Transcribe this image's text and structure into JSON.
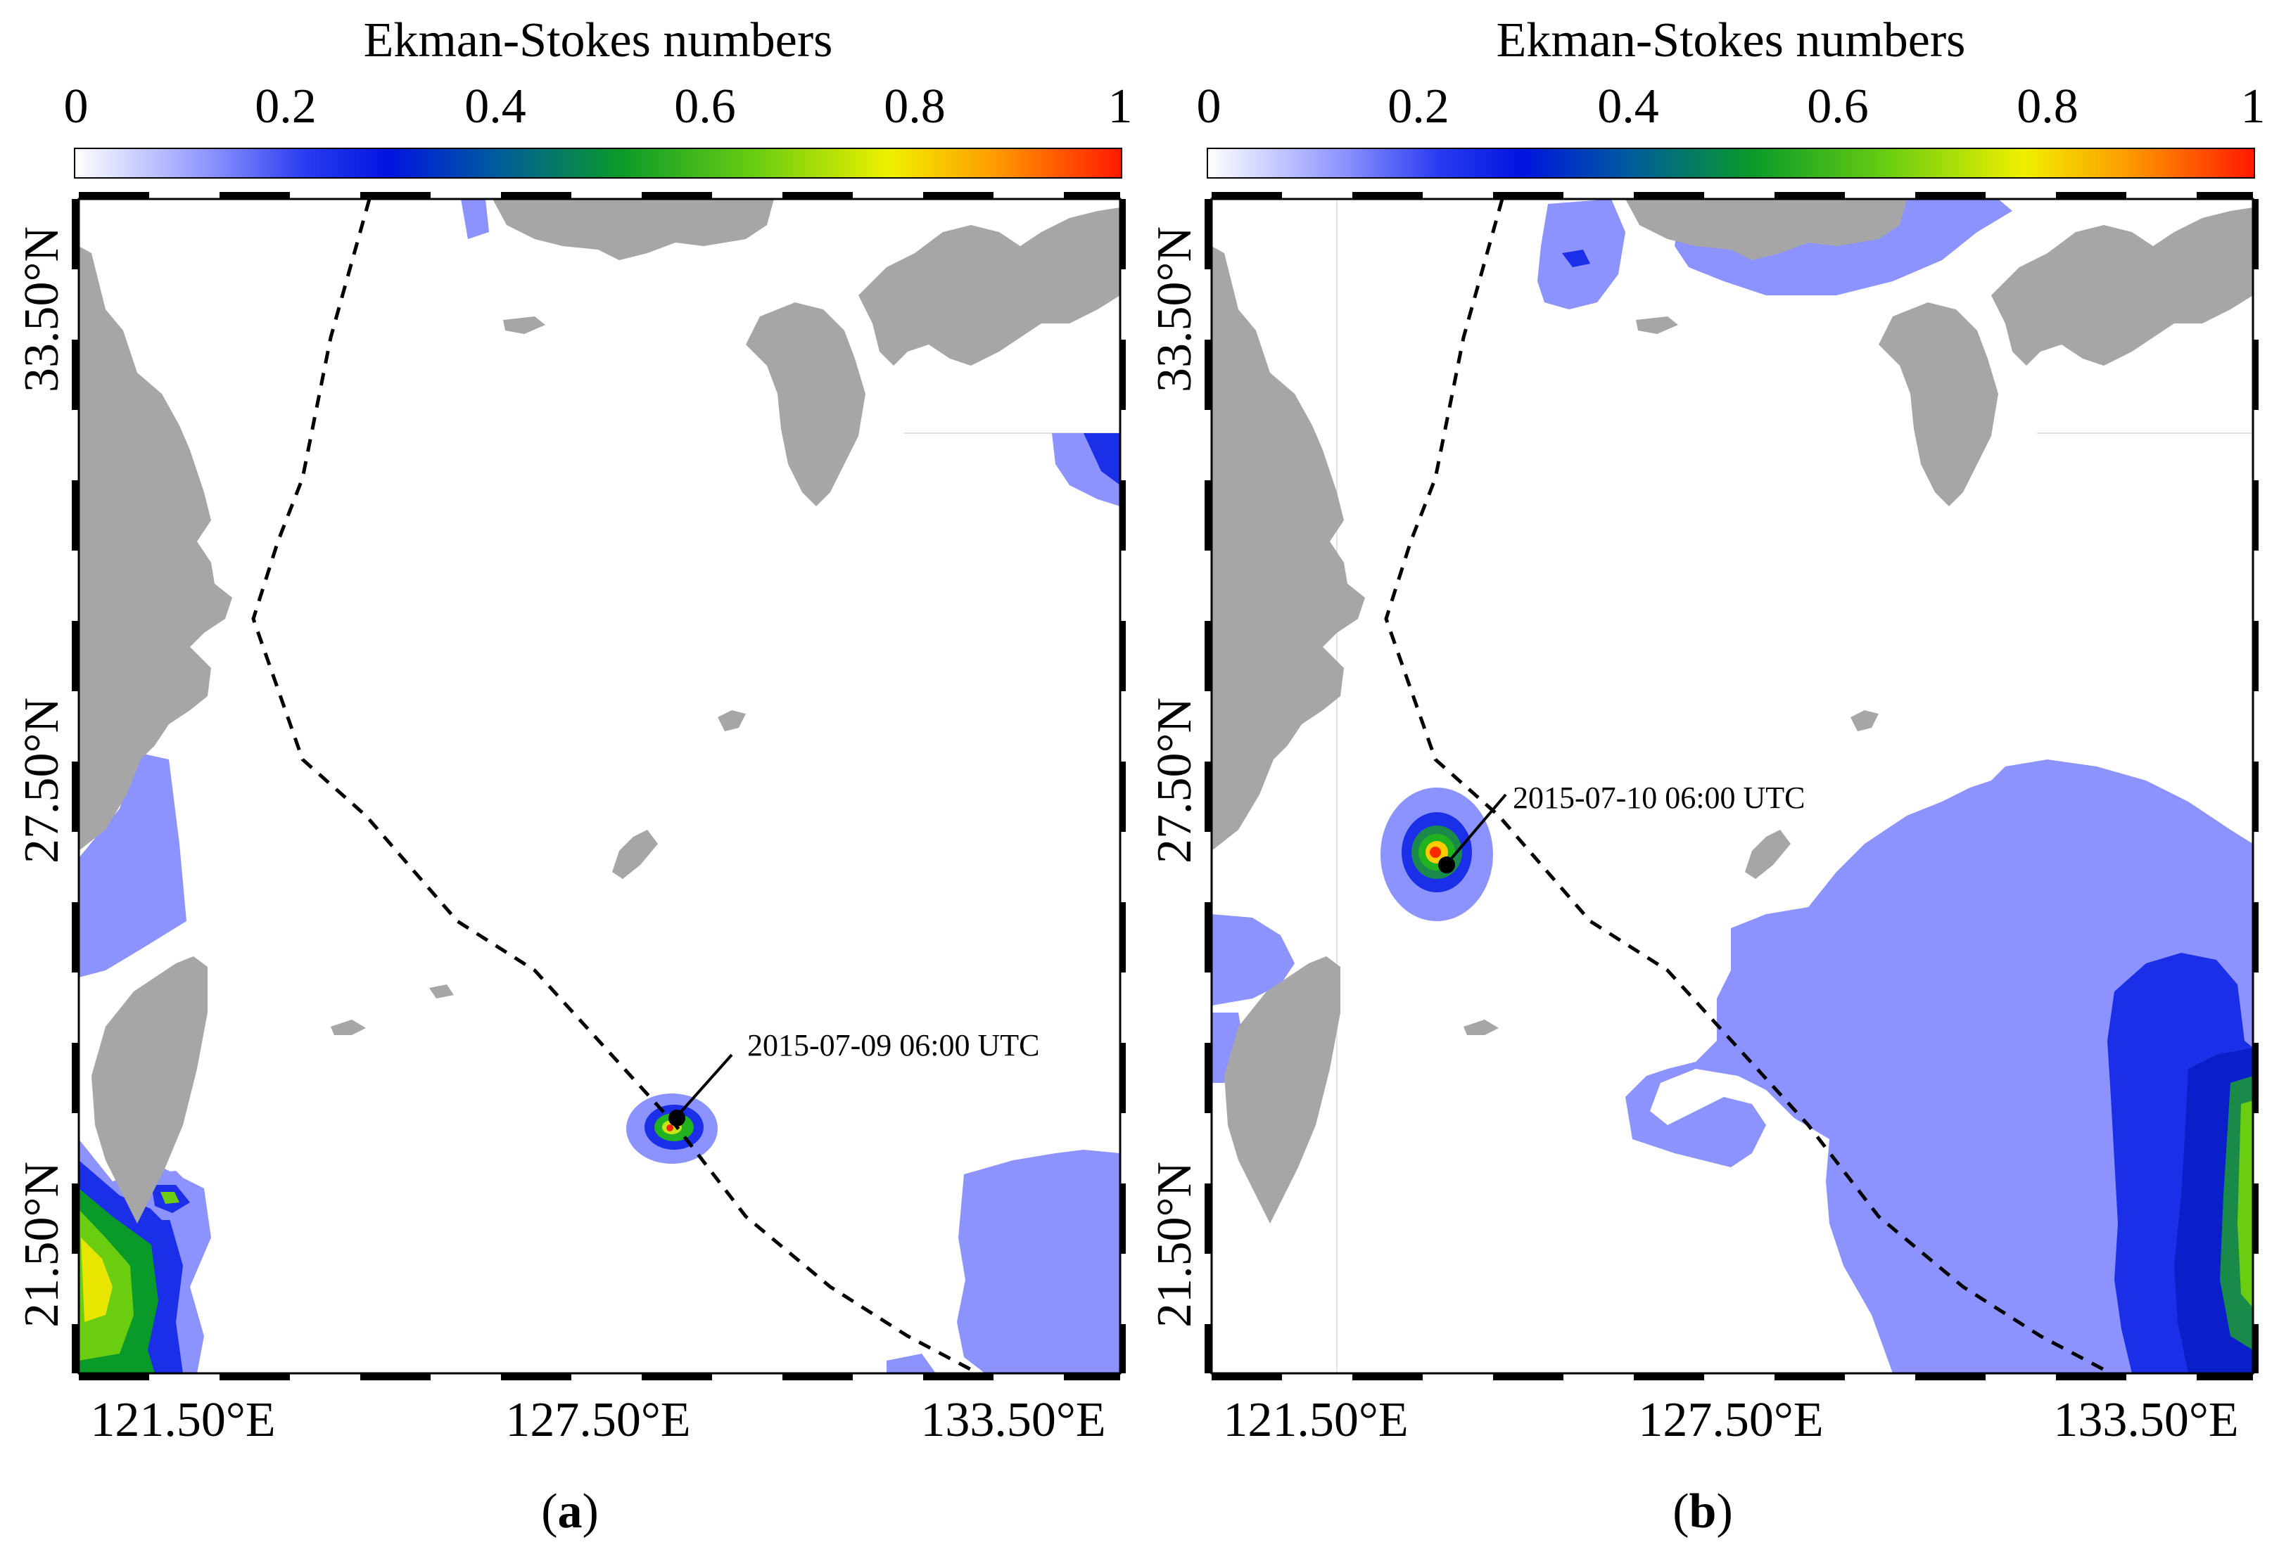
{
  "panels": [
    {
      "id": "a",
      "label_letter": "a",
      "colorbar": {
        "title": "Ekman-Stokes numbers",
        "ticks": [
          "0",
          "0.2",
          "0.4",
          "0.6",
          "0.8",
          "1"
        ],
        "range": [
          0,
          1
        ]
      },
      "lat_labels": [
        "33.50°N",
        "27.50°N",
        "21.50°N"
      ],
      "lon_labels": [
        "121.50°E",
        "127.50°E",
        "133.50°E"
      ],
      "annotation": "2015-07-09 06:00 UTC"
    },
    {
      "id": "b",
      "label_letter": "b",
      "colorbar": {
        "title": "Ekman-Stokes numbers",
        "ticks": [
          "0",
          "0.2",
          "0.4",
          "0.6",
          "0.8",
          "1"
        ],
        "range": [
          0,
          1
        ]
      },
      "lat_labels": [
        "33.50°N",
        "27.50°N",
        "21.50°N"
      ],
      "lon_labels": [
        "121.50°E",
        "127.50°E",
        "133.50°E"
      ],
      "annotation": "2015-07-10 06:00 UTC"
    }
  ],
  "colors": {
    "land": "#a6a6a6",
    "level_1": "#8c93ff",
    "level_2": "#1b2ee8",
    "level_3": "#0a1fc9",
    "level_4": "#1a8a4a",
    "level_5": "#23b21f",
    "level_6": "#c8e51a",
    "level_7": "#ffcc00",
    "level_8": "#ff2a00",
    "track": "#000000"
  }
}
